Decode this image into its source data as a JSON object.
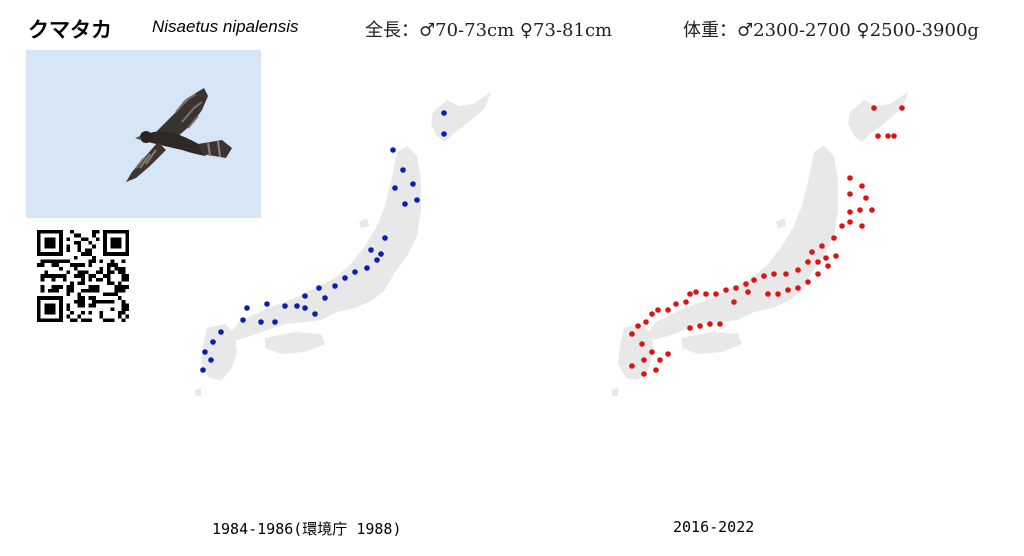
{
  "header": {
    "name_jp": "クマタカ",
    "name_sci": "Nisaetus nipalensis",
    "length": "全長：♂70-73cm ♀73-81cm",
    "weight": "体重：♂2300-2700 ♀2500-3900g"
  },
  "maps": [
    {
      "caption": "1984-1986(環境庁 1988)",
      "dot_color": "#0a1fb4"
    },
    {
      "caption": "2016-2022",
      "dot_color": "#d91616"
    }
  ],
  "icons": {
    "bird": "eagle-photo",
    "qr": "qr-code"
  },
  "colors": {
    "land": "#e8e8e8",
    "sky": "#d6e6f6"
  }
}
